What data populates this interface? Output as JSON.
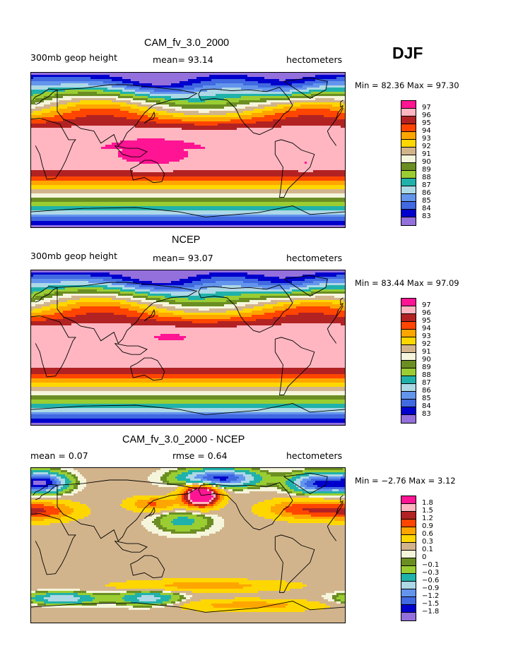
{
  "season": "DJF",
  "colors": {
    "c83": "#9370db",
    "c84": "#0000cd",
    "c85": "#4169e1",
    "c86": "#6495ed",
    "c87": "#add8e6",
    "c88": "#20b2aa",
    "c89": "#9acd32",
    "c90": "#6b8e23",
    "c91": "#f5f5dc",
    "c92": "#d2b48c",
    "c93": "#ffd700",
    "c94": "#ffa500",
    "c95": "#ff4500",
    "c96": "#b22222",
    "c97": "#ffb6c1",
    "c98": "#ff1493"
  },
  "panels": [
    {
      "title": "CAM_fv_3.0_2000",
      "left_label": "300mb geop height",
      "center_label": "mean=   93.14",
      "right_label": "hectometers",
      "minmax": "Min =   82.36  Max =   97.30",
      "levels": [
        "97",
        "96",
        "95",
        "94",
        "93",
        "92",
        "91",
        "90",
        "89",
        "88",
        "87",
        "86",
        "85",
        "84",
        "83"
      ],
      "field": "abs1"
    },
    {
      "title": "NCEP",
      "left_label": "300mb geop height",
      "center_label": "mean=   93.07",
      "right_label": "hectometers",
      "minmax": "Min =   83.44  Max =   97.09",
      "levels": [
        "97",
        "96",
        "95",
        "94",
        "93",
        "92",
        "91",
        "90",
        "89",
        "88",
        "87",
        "86",
        "85",
        "84",
        "83"
      ],
      "field": "abs2"
    },
    {
      "title": "CAM_fv_3.0_2000 - NCEP",
      "left_label": "mean =    0.07",
      "center_label": "rmse =    0.64",
      "right_label": "hectometers",
      "minmax": "Min =   −2.76  Max =    3.12",
      "levels": [
        "1.8",
        "1.5",
        "1.2",
        "0.9",
        "0.6",
        "0.3",
        "0.1",
        "0",
        "−0.1",
        "−0.3",
        "−0.6",
        "−0.9",
        "−1.2",
        "−1.5",
        "−1.8"
      ],
      "field": "diff"
    }
  ],
  "color_bar_colors": [
    "#ff1493",
    "#ffb6c1",
    "#b22222",
    "#ff4500",
    "#ffa500",
    "#ffd700",
    "#d2b48c",
    "#f5f5dc",
    "#6b8e23",
    "#9acd32",
    "#20b2aa",
    "#add8e6",
    "#6495ed",
    "#4169e1",
    "#0000cd",
    "#9370db"
  ]
}
